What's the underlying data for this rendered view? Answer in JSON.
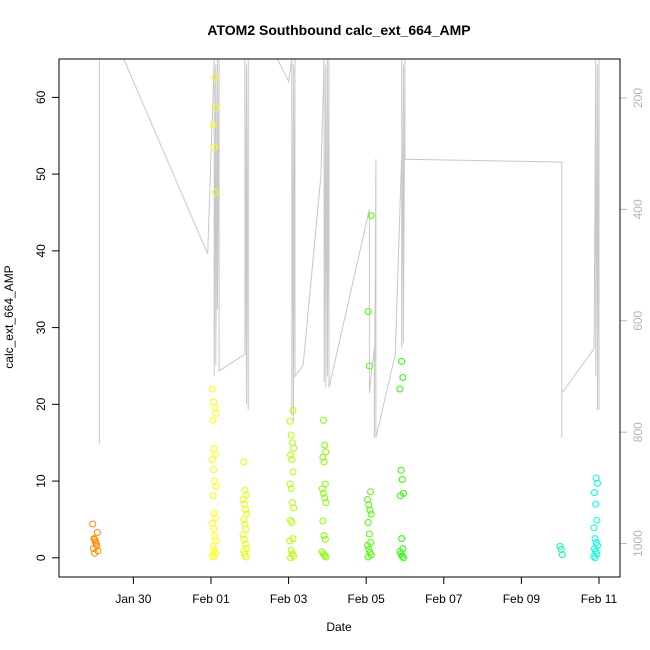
{
  "chart_data": {
    "type": "scatter",
    "title": "ATOM2 Southbound calc_ext_664_AMP",
    "xlabel": "Date",
    "ylabel": "calc_ext_664_AMP",
    "x_axis_type": "date",
    "xlim": [
      "2025-01-28T02:00",
      "2025-02-11T13:00"
    ],
    "ylim": [
      -2.5,
      65
    ],
    "x_ticks": [
      {
        "date": "2025-01-30",
        "label": "Jan 30"
      },
      {
        "date": "2025-02-01",
        "label": "Feb 01"
      },
      {
        "date": "2025-02-03",
        "label": "Feb 03"
      },
      {
        "date": "2025-02-05",
        "label": "Feb 05"
      },
      {
        "date": "2025-02-07",
        "label": "Feb 07"
      },
      {
        "date": "2025-02-09",
        "label": "Feb 09"
      },
      {
        "date": "2025-02-11",
        "label": "Feb 11"
      }
    ],
    "y_ticks": [
      0,
      10,
      20,
      30,
      40,
      50,
      60
    ],
    "secondary_axis": {
      "position": "right",
      "reversed": true,
      "color": "#b4b4b4",
      "ylim": [
        130,
        1060
      ],
      "ticks": [
        200,
        400,
        600,
        800,
        1000
      ]
    },
    "grid": false,
    "point_marker": "open-circle",
    "color_scale": "time-gradient orange to cyan",
    "series": [
      {
        "color": "#ff8c00",
        "points": [
          [
            "2025-01-29T00:00",
            4.4
          ],
          [
            "2025-01-29T00:00",
            2.5
          ],
          [
            "2025-01-29T00:00",
            2.2
          ],
          [
            "2025-01-29T00:00",
            1.8
          ],
          [
            "2025-01-29T00:00",
            1.2
          ],
          [
            "2025-01-29T00:00",
            0.6
          ],
          [
            "2025-01-29T01:00",
            3.3
          ],
          [
            "2025-01-29T01:00",
            2.4
          ],
          [
            "2025-01-29T01:00",
            2.0
          ],
          [
            "2025-01-29T01:00",
            1.5
          ],
          [
            "2025-01-29T01:00",
            0.9
          ]
        ]
      },
      {
        "color": "#ffff00",
        "points": [
          [
            "2025-02-01T02:00",
            62.6
          ],
          [
            "2025-02-01T02:00",
            58.7
          ],
          [
            "2025-02-01T02:00",
            56.4
          ],
          [
            "2025-02-01T02:00",
            53.5
          ],
          [
            "2025-02-01T02:00",
            47.6
          ],
          [
            "2025-02-01T02:00",
            22.0
          ],
          [
            "2025-02-01T02:00",
            20.3
          ],
          [
            "2025-02-01T02:00",
            19.6
          ],
          [
            "2025-02-01T02:00",
            18.8
          ],
          [
            "2025-02-01T02:00",
            17.9
          ],
          [
            "2025-02-01T02:00",
            14.2
          ],
          [
            "2025-02-01T02:00",
            13.5
          ],
          [
            "2025-02-01T02:00",
            12.8
          ],
          [
            "2025-02-01T02:00",
            11.5
          ],
          [
            "2025-02-01T02:00",
            10.0
          ],
          [
            "2025-02-01T02:00",
            9.3
          ],
          [
            "2025-02-01T02:00",
            8.1
          ],
          [
            "2025-02-01T02:00",
            5.8
          ],
          [
            "2025-02-01T02:00",
            5.2
          ],
          [
            "2025-02-01T02:00",
            4.5
          ],
          [
            "2025-02-01T02:00",
            3.8
          ],
          [
            "2025-02-01T02:00",
            2.9
          ],
          [
            "2025-02-01T02:00",
            2.2
          ],
          [
            "2025-02-01T02:00",
            1.5
          ],
          [
            "2025-02-01T02:00",
            1.0
          ],
          [
            "2025-02-01T02:00",
            0.6
          ],
          [
            "2025-02-01T02:00",
            0.3
          ],
          [
            "2025-02-01T02:00",
            0.1
          ]
        ]
      },
      {
        "color": "#e1ff00",
        "points": [
          [
            "2025-02-01T21:00",
            12.5
          ],
          [
            "2025-02-01T21:00",
            8.8
          ],
          [
            "2025-02-01T21:00",
            8.2
          ],
          [
            "2025-02-01T21:00",
            7.6
          ],
          [
            "2025-02-01T21:00",
            7.0
          ],
          [
            "2025-02-01T21:00",
            6.3
          ],
          [
            "2025-02-01T21:00",
            5.7
          ],
          [
            "2025-02-01T21:00",
            5.0
          ],
          [
            "2025-02-01T21:00",
            4.4
          ],
          [
            "2025-02-01T21:00",
            3.7
          ],
          [
            "2025-02-01T21:00",
            3.0
          ],
          [
            "2025-02-01T21:00",
            2.4
          ],
          [
            "2025-02-01T21:00",
            1.8
          ],
          [
            "2025-02-01T21:00",
            1.2
          ],
          [
            "2025-02-01T21:00",
            0.8
          ],
          [
            "2025-02-01T21:00",
            0.4
          ],
          [
            "2025-02-01T21:00",
            0.1
          ]
        ]
      },
      {
        "color": "#b4ff00",
        "points": [
          [
            "2025-02-03T02:00",
            19.2
          ],
          [
            "2025-02-03T02:00",
            17.8
          ],
          [
            "2025-02-03T02:00",
            16.0
          ],
          [
            "2025-02-03T02:00",
            15.0
          ],
          [
            "2025-02-03T02:00",
            14.3
          ],
          [
            "2025-02-03T02:00",
            13.4
          ],
          [
            "2025-02-03T02:00",
            12.8
          ],
          [
            "2025-02-03T02:00",
            11.2
          ],
          [
            "2025-02-03T02:00",
            9.6
          ],
          [
            "2025-02-03T02:00",
            9.0
          ],
          [
            "2025-02-03T02:00",
            7.2
          ],
          [
            "2025-02-03T02:00",
            6.5
          ],
          [
            "2025-02-03T02:00",
            4.9
          ],
          [
            "2025-02-03T02:00",
            4.6
          ],
          [
            "2025-02-03T02:00",
            2.5
          ],
          [
            "2025-02-03T02:00",
            2.2
          ],
          [
            "2025-02-03T02:00",
            1.0
          ],
          [
            "2025-02-03T02:00",
            0.5
          ],
          [
            "2025-02-03T02:00",
            0.2
          ],
          [
            "2025-02-03T02:00",
            0.0
          ]
        ]
      },
      {
        "color": "#87ff00",
        "points": [
          [
            "2025-02-03T22:00",
            17.9
          ],
          [
            "2025-02-03T22:00",
            14.7
          ],
          [
            "2025-02-03T22:00",
            13.8
          ],
          [
            "2025-02-03T22:00",
            13.1
          ],
          [
            "2025-02-03T22:00",
            12.5
          ],
          [
            "2025-02-03T22:00",
            9.6
          ],
          [
            "2025-02-03T22:00",
            9.0
          ],
          [
            "2025-02-03T22:00",
            8.4
          ],
          [
            "2025-02-03T22:00",
            7.8
          ],
          [
            "2025-02-03T22:00",
            7.2
          ],
          [
            "2025-02-03T22:00",
            4.8
          ],
          [
            "2025-02-03T22:00",
            2.9
          ],
          [
            "2025-02-03T22:00",
            2.4
          ],
          [
            "2025-02-03T22:00",
            0.8
          ],
          [
            "2025-02-03T22:00",
            0.5
          ],
          [
            "2025-02-03T22:00",
            0.3
          ],
          [
            "2025-02-03T22:00",
            0.1
          ]
        ]
      },
      {
        "color": "#4bff00",
        "points": [
          [
            "2025-02-05T02:00",
            44.6
          ],
          [
            "2025-02-05T02:00",
            32.1
          ],
          [
            "2025-02-05T02:00",
            25.0
          ],
          [
            "2025-02-05T02:00",
            8.6
          ],
          [
            "2025-02-05T02:00",
            7.6
          ],
          [
            "2025-02-05T02:00",
            6.9
          ],
          [
            "2025-02-05T02:00",
            6.2
          ],
          [
            "2025-02-05T02:00",
            5.7
          ],
          [
            "2025-02-05T02:00",
            4.6
          ],
          [
            "2025-02-05T02:00",
            3.1
          ],
          [
            "2025-02-05T02:00",
            2.0
          ],
          [
            "2025-02-05T02:00",
            1.6
          ],
          [
            "2025-02-05T02:00",
            1.1
          ],
          [
            "2025-02-05T02:00",
            0.7
          ],
          [
            "2025-02-05T02:00",
            0.4
          ],
          [
            "2025-02-05T02:00",
            0.1
          ]
        ]
      },
      {
        "color": "#23ff00",
        "points": [
          [
            "2025-02-05T22:00",
            25.6
          ],
          [
            "2025-02-05T22:00",
            23.5
          ],
          [
            "2025-02-05T22:00",
            22.0
          ],
          [
            "2025-02-05T22:00",
            11.4
          ],
          [
            "2025-02-05T22:00",
            10.2
          ],
          [
            "2025-02-05T22:00",
            8.4
          ],
          [
            "2025-02-05T22:00",
            8.1
          ],
          [
            "2025-02-05T22:00",
            2.5
          ],
          [
            "2025-02-05T22:00",
            1.2
          ],
          [
            "2025-02-05T22:00",
            0.8
          ],
          [
            "2025-02-05T22:00",
            0.5
          ],
          [
            "2025-02-05T22:00",
            0.2
          ],
          [
            "2025-02-05T22:00",
            0.0
          ]
        ]
      },
      {
        "color": "#00ffa0",
        "points": [
          [
            "2025-02-10T01:00",
            1.5
          ],
          [
            "2025-02-10T01:00",
            1.1
          ],
          [
            "2025-02-10T01:00",
            0.4
          ]
        ]
      },
      {
        "color": "#00ffdc",
        "points": [
          [
            "2025-02-10T22:00",
            10.4
          ],
          [
            "2025-02-10T22:00",
            9.7
          ],
          [
            "2025-02-10T22:00",
            8.5
          ],
          [
            "2025-02-10T22:00",
            7.0
          ],
          [
            "2025-02-10T22:00",
            4.9
          ],
          [
            "2025-02-10T22:00",
            3.9
          ],
          [
            "2025-02-10T22:00",
            2.5
          ],
          [
            "2025-02-10T22:00",
            2.0
          ],
          [
            "2025-02-10T22:00",
            1.6
          ],
          [
            "2025-02-10T22:00",
            1.2
          ],
          [
            "2025-02-10T22:00",
            0.8
          ],
          [
            "2025-02-10T22:00",
            0.5
          ],
          [
            "2025-02-10T22:00",
            0.2
          ],
          [
            "2025-02-10T22:00",
            0.0
          ]
        ]
      }
    ],
    "secondary_line": {
      "color": "#c8c8c8",
      "points": [
        [
          "2025-01-29T03:00",
          130
        ],
        [
          "2025-01-29T03:00",
          780
        ],
        [
          "2025-01-29T03:00",
          820
        ],
        [
          "2025-01-29T03:00",
          130
        ],
        [
          "2025-01-29T18:00",
          130
        ],
        [
          "2025-01-31T22:00",
          480
        ],
        [
          "2025-02-01T02:00",
          130
        ],
        [
          "2025-02-01T02:00",
          700
        ],
        [
          "2025-02-01T03:00",
          140
        ],
        [
          "2025-02-01T03:00",
          680
        ],
        [
          "2025-02-01T04:00",
          130
        ],
        [
          "2025-02-01T04:00",
          580
        ],
        [
          "2025-02-01T05:00",
          130
        ],
        [
          "2025-02-01T05:00",
          690
        ],
        [
          "2025-02-01T21:00",
          660
        ],
        [
          "2025-02-01T21:00",
          130
        ],
        [
          "2025-02-01T22:00",
          750
        ],
        [
          "2025-02-01T22:00",
          140
        ],
        [
          "2025-02-01T23:00",
          760
        ],
        [
          "2025-02-01T23:00",
          130
        ],
        [
          "2025-02-02T17:00",
          130
        ],
        [
          "2025-02-03T00:00",
          170
        ],
        [
          "2025-02-03T02:00",
          130
        ],
        [
          "2025-02-03T02:00",
          770
        ],
        [
          "2025-02-03T03:00",
          140
        ],
        [
          "2025-02-03T03:00",
          780
        ],
        [
          "2025-02-03T04:00",
          130
        ],
        [
          "2025-02-03T04:00",
          700
        ],
        [
          "2025-02-03T09:00",
          680
        ],
        [
          "2025-02-03T20:00",
          340
        ],
        [
          "2025-02-03T22:00",
          130
        ],
        [
          "2025-02-03T22:00",
          710
        ],
        [
          "2025-02-03T23:00",
          140
        ],
        [
          "2025-02-03T23:00",
          720
        ],
        [
          "2025-02-04T00:00",
          130
        ],
        [
          "2025-02-04T00:00",
          700
        ],
        [
          "2025-02-04T01:00",
          130
        ],
        [
          "2025-02-04T01:00",
          720
        ],
        [
          "2025-02-05T02:00",
          400
        ],
        [
          "2025-02-05T02:00",
          730
        ],
        [
          "2025-02-05T03:00",
          700
        ],
        [
          "2025-02-05T05:00",
          650
        ],
        [
          "2025-02-05T05:00",
          810
        ],
        [
          "2025-02-05T06:00",
          310
        ],
        [
          "2025-02-05T06:00",
          810
        ],
        [
          "2025-02-05T18:00",
          660
        ],
        [
          "2025-02-05T22:00",
          300
        ],
        [
          "2025-02-05T22:00",
          130
        ],
        [
          "2025-02-05T22:00",
          650
        ],
        [
          "2025-02-05T23:00",
          140
        ],
        [
          "2025-02-05T23:00",
          640
        ],
        [
          "2025-02-06T00:00",
          130
        ],
        [
          "2025-02-06T00:00",
          310
        ],
        [
          "2025-02-06T00:00",
          310
        ],
        [
          "2025-02-10T00:00",
          315
        ],
        [
          "2025-02-10T01:00",
          315
        ],
        [
          "2025-02-10T01:00",
          810
        ],
        [
          "2025-02-10T01:00",
          730
        ],
        [
          "2025-02-10T21:00",
          650
        ],
        [
          "2025-02-10T22:00",
          130
        ],
        [
          "2025-02-10T22:00",
          700
        ],
        [
          "2025-02-10T23:00",
          140
        ],
        [
          "2025-02-10T23:00",
          760
        ],
        [
          "2025-02-11T00:00",
          130
        ],
        [
          "2025-02-11T00:00",
          760
        ]
      ]
    }
  }
}
